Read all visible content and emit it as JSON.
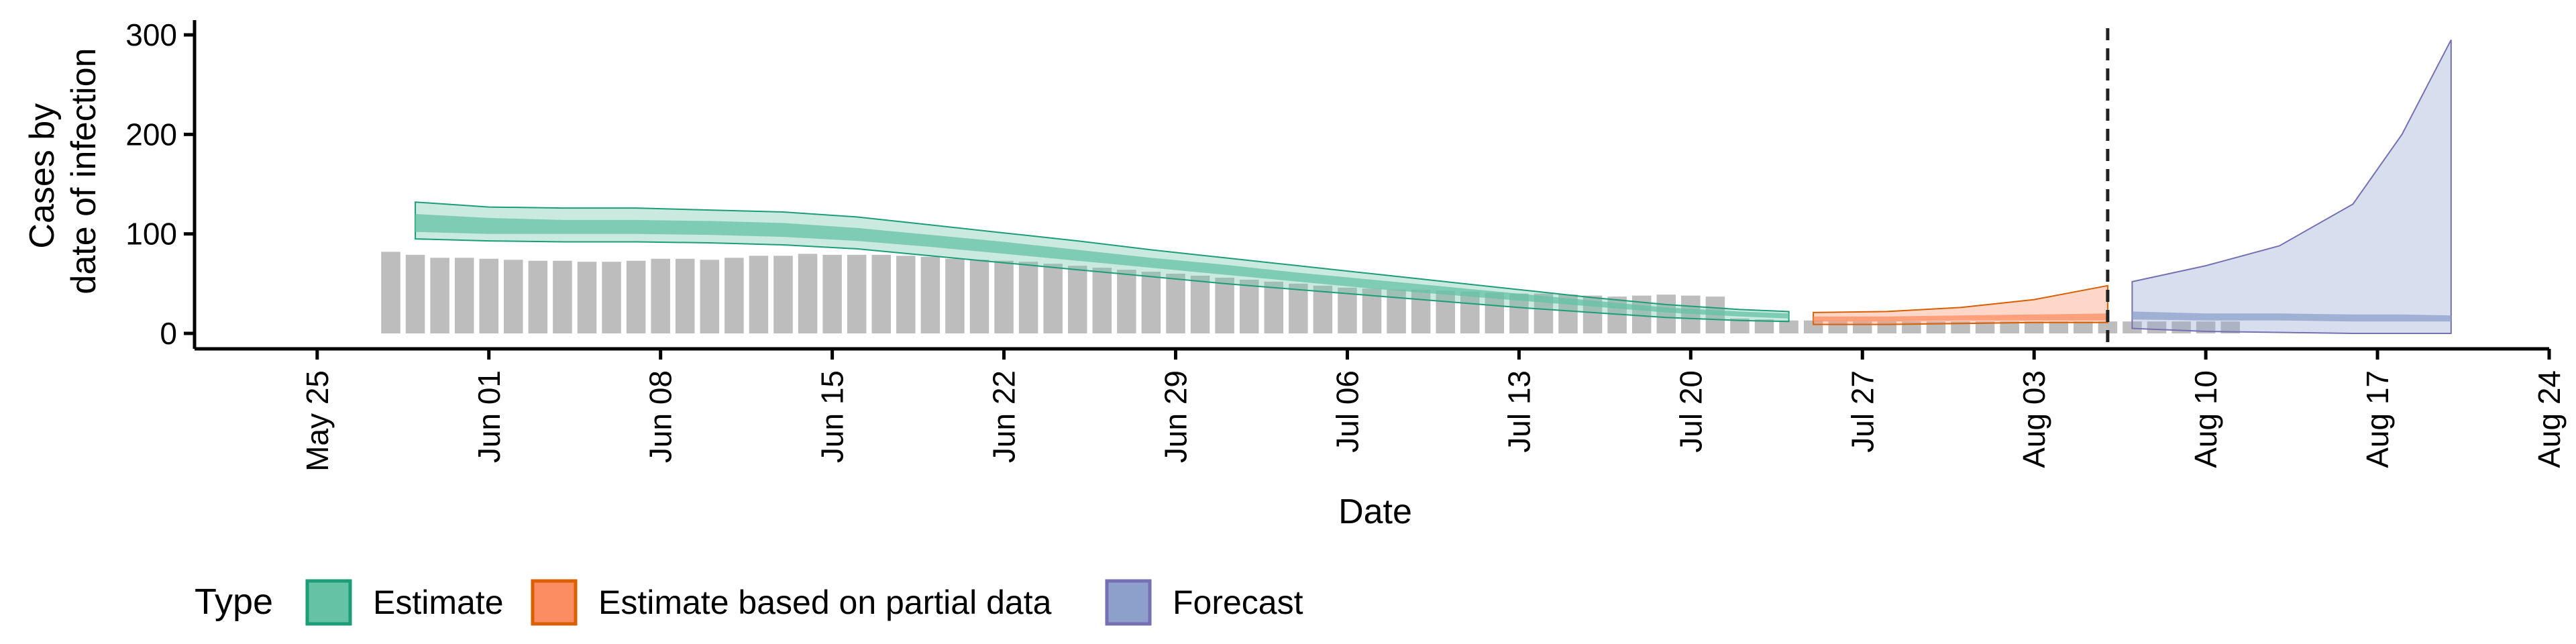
{
  "chart_data": {
    "type": "bar",
    "xlabel": "Date",
    "ylabel": [
      "Cases by",
      "date of infection"
    ],
    "ylim": [
      0,
      300
    ],
    "xlim": [
      "2020-05-20",
      "2020-08-24"
    ],
    "y_ticks": [
      0,
      100,
      200,
      300
    ],
    "x_ticks": [
      {
        "date": "2020-05-25",
        "label": "May 25"
      },
      {
        "date": "2020-06-01",
        "label": "Jun 01"
      },
      {
        "date": "2020-06-08",
        "label": "Jun 08"
      },
      {
        "date": "2020-06-15",
        "label": "Jun 15"
      },
      {
        "date": "2020-06-22",
        "label": "Jun 22"
      },
      {
        "date": "2020-06-29",
        "label": "Jun 29"
      },
      {
        "date": "2020-07-06",
        "label": "Jul 06"
      },
      {
        "date": "2020-07-13",
        "label": "Jul 13"
      },
      {
        "date": "2020-07-20",
        "label": "Jul 20"
      },
      {
        "date": "2020-07-27",
        "label": "Jul 27"
      },
      {
        "date": "2020-08-03",
        "label": "Aug 03"
      },
      {
        "date": "2020-08-10",
        "label": "Aug 10"
      },
      {
        "date": "2020-08-17",
        "label": "Aug 17"
      },
      {
        "date": "2020-08-24",
        "label": "Aug 24"
      }
    ],
    "grid": false,
    "legend_position": "bottom-left",
    "legend_title": "Type",
    "reported_cases": {
      "color": "#bdbdbd",
      "start_date": "2020-05-28",
      "values": [
        82,
        79,
        76,
        76,
        75,
        74,
        73,
        73,
        72,
        72,
        73,
        75,
        75,
        74,
        76,
        78,
        78,
        80,
        79,
        79,
        79,
        78,
        77,
        75,
        74,
        73,
        72,
        70,
        68,
        66,
        64,
        62,
        60,
        58,
        56,
        54,
        52,
        50,
        48,
        46,
        45,
        44,
        44,
        43,
        42,
        41,
        40,
        40,
        39,
        38,
        37,
        38,
        39,
        38,
        37,
        15,
        14,
        13,
        13,
        12,
        12,
        12,
        12,
        12,
        12,
        12,
        12,
        12,
        12,
        12,
        12,
        12,
        12,
        12,
        12,
        12
      ]
    },
    "vline_date": "2020-08-06",
    "series": [
      {
        "name": "Estimate",
        "color": "#1b9e77",
        "fill": "#66c2a5",
        "points": [
          [
            "2020-05-29",
            132,
            95,
            120,
            102
          ],
          [
            "2020-06-01",
            127,
            93,
            116,
            100
          ],
          [
            "2020-06-04",
            126,
            92,
            114,
            100
          ],
          [
            "2020-06-07",
            126,
            92,
            114,
            100
          ],
          [
            "2020-06-10",
            124,
            91,
            113,
            99
          ],
          [
            "2020-06-13",
            122,
            89,
            111,
            97
          ],
          [
            "2020-06-16",
            117,
            85,
            106,
            93
          ],
          [
            "2020-06-19",
            109,
            78,
            99,
            87
          ],
          [
            "2020-06-22",
            101,
            71,
            92,
            80
          ],
          [
            "2020-06-25",
            93,
            64,
            84,
            73
          ],
          [
            "2020-06-28",
            84,
            57,
            76,
            66
          ],
          [
            "2020-07-01",
            76,
            50,
            69,
            59
          ],
          [
            "2020-07-04",
            68,
            44,
            61,
            52
          ],
          [
            "2020-07-07",
            60,
            38,
            54,
            45
          ],
          [
            "2020-07-10",
            52,
            32,
            47,
            39
          ],
          [
            "2020-07-13",
            44,
            26,
            40,
            33
          ],
          [
            "2020-07-16",
            36,
            21,
            33,
            27
          ],
          [
            "2020-07-19",
            29,
            16,
            26,
            21
          ],
          [
            "2020-07-22",
            24,
            13,
            22,
            17
          ],
          [
            "2020-07-24",
            22,
            12,
            20,
            15
          ]
        ]
      },
      {
        "name": "Estimate based on partial data",
        "color": "#d95f02",
        "fill": "#fc8d62",
        "points": [
          [
            "2020-07-25",
            21,
            9,
            17,
            12
          ],
          [
            "2020-07-28",
            22,
            9,
            17,
            12
          ],
          [
            "2020-07-31",
            26,
            10,
            18,
            13
          ],
          [
            "2020-08-03",
            34,
            11,
            19,
            13
          ],
          [
            "2020-08-06",
            48,
            11,
            20,
            13
          ]
        ]
      },
      {
        "name": "Forecast",
        "color": "#7570b3",
        "fill": "#8da0cb",
        "points": [
          [
            "2020-08-07",
            52,
            5,
            22,
            14
          ],
          [
            "2020-08-10",
            68,
            2,
            20,
            13
          ],
          [
            "2020-08-13",
            88,
            1,
            20,
            13
          ],
          [
            "2020-08-16",
            130,
            0,
            19,
            12
          ],
          [
            "2020-08-18",
            200,
            0,
            19,
            12
          ],
          [
            "2020-08-20",
            295,
            0,
            18,
            12
          ]
        ]
      }
    ]
  }
}
